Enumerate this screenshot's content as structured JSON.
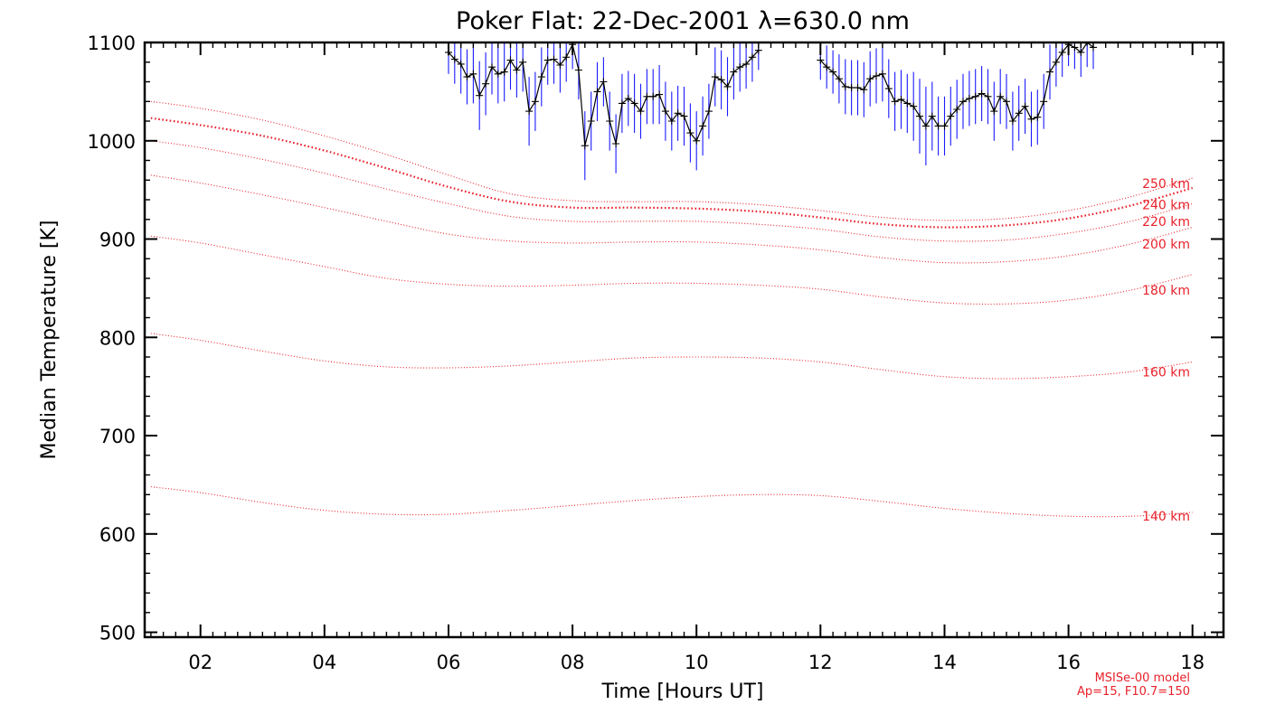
{
  "chart_data": {
    "type": "line",
    "title": "Poker Flat: 22-Dec-2001 λ=630.0 nm",
    "xlabel": "Time [Hours UT]",
    "ylabel": "Median Temperature [K]",
    "xlim": [
      1.1,
      18.5
    ],
    "ylim": [
      495,
      1100
    ],
    "x_ticks": [
      2,
      4,
      6,
      8,
      10,
      12,
      14,
      16,
      18
    ],
    "x_tick_labels": [
      "02",
      "04",
      "06",
      "08",
      "10",
      "12",
      "14",
      "16",
      "18"
    ],
    "y_ticks": [
      500,
      600,
      700,
      800,
      900,
      1000,
      1100
    ],
    "y_tick_labels": [
      "500",
      "600",
      "700",
      "800",
      "900",
      "1000",
      "1100"
    ],
    "model_note": [
      "MSISe-00 model",
      "Ap=15, F10.7=150"
    ],
    "model_series": [
      {
        "name": "140 km",
        "label": "140 km",
        "color": "#e8212a",
        "x": [
          1.2,
          2,
          3,
          4,
          5,
          6,
          7,
          8,
          9,
          10,
          11,
          12,
          13,
          14,
          15,
          16,
          17,
          18
        ],
        "y": [
          648,
          642,
          632,
          624,
          620,
          620,
          624,
          629,
          634,
          638,
          640,
          639,
          633,
          626,
          621,
          618,
          618,
          622
        ]
      },
      {
        "name": "160 km",
        "label": "160 km",
        "color": "#e8212a",
        "x": [
          1.2,
          2,
          3,
          4,
          5,
          6,
          7,
          8,
          9,
          10,
          11,
          12,
          13,
          14,
          15,
          16,
          17,
          18
        ],
        "y": [
          804,
          797,
          786,
          776,
          770,
          769,
          771,
          775,
          779,
          780,
          779,
          775,
          767,
          760,
          758,
          760,
          765,
          775
        ]
      },
      {
        "name": "180 km",
        "label": "180 km",
        "color": "#e8212a",
        "x": [
          1.2,
          2,
          3,
          4,
          5,
          6,
          7,
          8,
          9,
          10,
          11,
          12,
          13,
          14,
          15,
          16,
          17,
          18
        ],
        "y": [
          903,
          896,
          884,
          872,
          860,
          854,
          852,
          853,
          855,
          855,
          853,
          849,
          841,
          835,
          834,
          838,
          848,
          864
        ]
      },
      {
        "name": "200 km",
        "label": "200 km",
        "color": "#e8212a",
        "x": [
          1.2,
          2,
          3,
          4,
          5,
          6,
          7,
          8,
          9,
          10,
          11,
          12,
          13,
          14,
          15,
          16,
          17,
          18
        ],
        "y": [
          965,
          957,
          945,
          932,
          918,
          905,
          898,
          896,
          897,
          897,
          894,
          889,
          881,
          876,
          877,
          883,
          895,
          912
        ]
      },
      {
        "name": "220 km",
        "label": "220 km",
        "color": "#e8212a",
        "x": [
          1.2,
          2,
          3,
          4,
          5,
          6,
          7,
          8,
          9,
          10,
          11,
          12,
          13,
          14,
          15,
          16,
          17,
          18
        ],
        "y": [
          1000,
          993,
          981,
          967,
          951,
          936,
          923,
          918,
          918,
          918,
          915,
          910,
          902,
          898,
          899,
          906,
          918,
          936
        ]
      },
      {
        "name": "240 km",
        "label": "240 km",
        "color": "#e8212a",
        "x": [
          1.2,
          2,
          3,
          4,
          5,
          6,
          7,
          8,
          9,
          10,
          11,
          12,
          13,
          14,
          15,
          16,
          17,
          18
        ],
        "y": [
          1023,
          1016,
          1005,
          990,
          972,
          953,
          938,
          932,
          932,
          931,
          928,
          922,
          915,
          912,
          914,
          921,
          934,
          952
        ]
      },
      {
        "name": "250 km",
        "label": "250 km",
        "color": "#e8212a",
        "x": [
          1.2,
          2,
          3,
          4,
          5,
          6,
          7,
          8,
          9,
          10,
          11,
          12,
          13,
          14,
          15,
          16,
          17,
          18
        ],
        "y": [
          1040,
          1033,
          1021,
          1005,
          986,
          965,
          946,
          939,
          938,
          938,
          935,
          929,
          922,
          919,
          921,
          929,
          943,
          962
        ]
      }
    ],
    "median_series": {
      "name": "Median Temperature",
      "color": "#000000",
      "error_color": "#1a1aff",
      "x": [
        6.0,
        6.1,
        6.2,
        6.3,
        6.4,
        6.5,
        6.6,
        6.7,
        6.8,
        6.9,
        7.0,
        7.1,
        7.2,
        7.3,
        7.4,
        7.5,
        7.6,
        7.7,
        7.8,
        7.9,
        8.0,
        8.1,
        8.2,
        8.3,
        8.4,
        8.5,
        8.6,
        8.7,
        8.8,
        8.9,
        9.0,
        9.1,
        9.2,
        9.3,
        9.4,
        9.5,
        9.6,
        9.7,
        9.8,
        9.9,
        10.0,
        10.1,
        10.2,
        10.3,
        10.4,
        10.5,
        10.6,
        10.7,
        10.8,
        10.9,
        11.0,
        12.0,
        12.1,
        12.2,
        12.3,
        12.4,
        12.5,
        12.6,
        12.7,
        12.8,
        12.9,
        13.0,
        13.1,
        13.2,
        13.3,
        13.4,
        13.5,
        13.6,
        13.7,
        13.8,
        13.9,
        14.0,
        14.1,
        14.2,
        14.3,
        14.4,
        14.5,
        14.6,
        14.7,
        14.8,
        14.9,
        15.0,
        15.1,
        15.2,
        15.3,
        15.4,
        15.5,
        15.6,
        15.7,
        15.8,
        15.9,
        16.0,
        16.1,
        16.2,
        16.3,
        16.4
      ],
      "y": [
        1090,
        1083,
        1078,
        1065,
        1068,
        1046,
        1058,
        1075,
        1068,
        1070,
        1082,
        1072,
        1080,
        1030,
        1040,
        1065,
        1082,
        1083,
        1077,
        1085,
        1098,
        1072,
        995,
        1020,
        1050,
        1060,
        1020,
        997,
        1038,
        1043,
        1038,
        1030,
        1045,
        1045,
        1047,
        1030,
        1020,
        1028,
        1025,
        1008,
        1000,
        1015,
        1030,
        1065,
        1062,
        1055,
        1070,
        1075,
        1078,
        1085,
        1092,
        1082,
        1075,
        1070,
        1063,
        1055,
        1054,
        1054,
        1052,
        1063,
        1066,
        1068,
        1053,
        1040,
        1042,
        1038,
        1035,
        1025,
        1015,
        1025,
        1015,
        1015,
        1025,
        1032,
        1040,
        1043,
        1045,
        1048,
        1045,
        1030,
        1045,
        1040,
        1020,
        1028,
        1035,
        1022,
        1024,
        1040,
        1070,
        1080,
        1090,
        1098,
        1095,
        1090,
        1100,
        1095
      ],
      "err": [
        22,
        25,
        30,
        28,
        30,
        35,
        32,
        28,
        30,
        30,
        30,
        28,
        30,
        35,
        30,
        30,
        25,
        25,
        28,
        25,
        25,
        30,
        35,
        30,
        30,
        25,
        30,
        30,
        30,
        28,
        30,
        28,
        28,
        28,
        30,
        30,
        30,
        28,
        30,
        30,
        30,
        30,
        28,
        30,
        30,
        30,
        28,
        25,
        25,
        25,
        20,
        20,
        22,
        22,
        25,
        28,
        28,
        28,
        28,
        28,
        28,
        28,
        30,
        30,
        30,
        30,
        35,
        38,
        40,
        35,
        30,
        30,
        30,
        30,
        28,
        28,
        28,
        28,
        28,
        30,
        28,
        28,
        30,
        28,
        28,
        28,
        28,
        28,
        28,
        25,
        25,
        22,
        22,
        25,
        25,
        22
      ]
    }
  }
}
